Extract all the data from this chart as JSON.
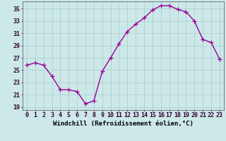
{
  "x": [
    0,
    1,
    2,
    3,
    4,
    5,
    6,
    7,
    8,
    9,
    10,
    11,
    12,
    13,
    14,
    15,
    16,
    17,
    18,
    19,
    20,
    21,
    22,
    23
  ],
  "y": [
    25.8,
    26.2,
    25.8,
    24.0,
    21.8,
    21.8,
    21.5,
    19.5,
    20.0,
    24.8,
    27.0,
    29.3,
    31.3,
    32.5,
    33.5,
    34.8,
    35.5,
    35.5,
    34.9,
    34.5,
    33.0,
    30.0,
    29.5,
    26.8
  ],
  "line_color": "#990099",
  "marker": "+",
  "bg_color": "#cce8e8",
  "grid_color": "#aacccc",
  "xlabel": "Windchill (Refroidissement éolien,°C)",
  "ylabel_ticks": [
    19,
    21,
    23,
    25,
    27,
    29,
    31,
    33,
    35
  ],
  "ylim": [
    18.5,
    36.2
  ],
  "xlim": [
    -0.5,
    23.5
  ],
  "xlabel_fontsize": 6.5,
  "tick_fontsize": 6,
  "line_width": 1.0,
  "marker_size": 4
}
